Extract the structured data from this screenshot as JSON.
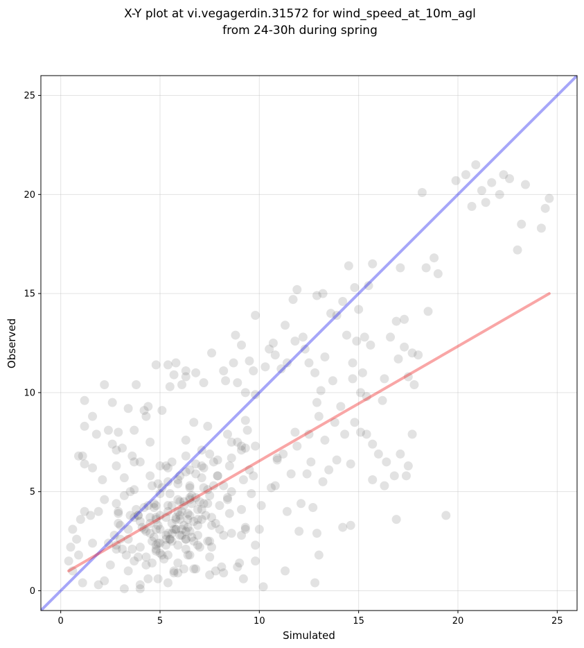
{
  "chart_data": {
    "type": "scatter",
    "title_line1": "X-Y plot at vi.vegagerdin.31572 for wind_speed_at_10m_agl",
    "title_line2": "from 24-30h during spring",
    "xlabel": "Simulated",
    "ylabel": "Observed",
    "xlim": [
      -1,
      26
    ],
    "ylim": [
      -1,
      26
    ],
    "xticks": [
      "0",
      "5",
      "10",
      "15",
      "20",
      "25"
    ],
    "yticks": [
      "0",
      "5",
      "10",
      "15",
      "20",
      "25"
    ],
    "grid": true,
    "lines": [
      {
        "role": "identity",
        "color": "#0000ee",
        "x": [
          -1,
          26
        ],
        "y": [
          -1,
          26
        ]
      },
      {
        "role": "regression",
        "color": "#ee0000",
        "x": [
          0.4,
          24.6
        ],
        "y": [
          1.0,
          15.0
        ]
      }
    ],
    "point_color": "#555555",
    "points": [
      [
        1.2,
        9.6
      ],
      [
        1.6,
        8.8
      ],
      [
        1.2,
        8.3
      ],
      [
        2.2,
        10.4
      ],
      [
        2.6,
        9.5
      ],
      [
        1.8,
        7.9
      ],
      [
        0.9,
        6.8
      ],
      [
        1.2,
        6.4
      ],
      [
        1.6,
        6.2
      ],
      [
        2.1,
        5.6
      ],
      [
        0.6,
        3.1
      ],
      [
        0.8,
        2.6
      ],
      [
        0.9,
        1.8
      ],
      [
        0.6,
        1.0
      ],
      [
        1.1,
        0.4
      ],
      [
        2.2,
        0.5
      ],
      [
        3.2,
        0.1
      ],
      [
        4.0,
        0.3
      ],
      [
        4.9,
        0.6
      ],
      [
        5.9,
        0.9
      ],
      [
        6.7,
        1.1
      ],
      [
        7.5,
        0.8
      ],
      [
        8.1,
        1.2
      ],
      [
        9.0,
        1.4
      ],
      [
        10.2,
        0.2
      ],
      [
        3.4,
        9.2
      ],
      [
        4.2,
        9.1
      ],
      [
        4.3,
        8.8
      ],
      [
        3.7,
        8.1
      ],
      [
        2.9,
        8.0
      ],
      [
        3.1,
        7.2
      ],
      [
        2.6,
        7.4
      ],
      [
        3.6,
        6.8
      ],
      [
        2.8,
        6.3
      ],
      [
        4.0,
        6.5
      ],
      [
        4.8,
        11.4
      ],
      [
        5.5,
        10.3
      ],
      [
        6.1,
        10.4
      ],
      [
        6.8,
        11.0
      ],
      [
        5.4,
        11.4
      ],
      [
        5.8,
        11.5
      ],
      [
        6.3,
        11.1
      ],
      [
        7.2,
        10.5
      ],
      [
        7.6,
        12.0
      ],
      [
        8.2,
        11.1
      ],
      [
        8.7,
        11.5
      ],
      [
        8.9,
        10.5
      ],
      [
        9.3,
        10.0
      ],
      [
        9.7,
        11.1
      ],
      [
        10.3,
        11.3
      ],
      [
        10.7,
        12.5
      ],
      [
        11.3,
        13.4
      ],
      [
        11.8,
        12.6
      ],
      [
        11.4,
        11.5
      ],
      [
        12.2,
        12.8
      ],
      [
        12.5,
        11.5
      ],
      [
        12.8,
        11.0
      ],
      [
        13.1,
        10.1
      ],
      [
        12.9,
        9.5
      ],
      [
        11.7,
        14.7
      ],
      [
        11.9,
        15.2
      ],
      [
        12.9,
        14.9
      ],
      [
        13.2,
        15.0
      ],
      [
        13.6,
        14.0
      ],
      [
        13.9,
        13.9
      ],
      [
        14.2,
        14.6
      ],
      [
        14.5,
        16.4
      ],
      [
        14.8,
        15.3
      ],
      [
        15.0,
        14.2
      ],
      [
        15.7,
        16.5
      ],
      [
        15.5,
        15.4
      ],
      [
        14.4,
        12.9
      ],
      [
        14.9,
        12.6
      ],
      [
        15.3,
        12.8
      ],
      [
        15.6,
        12.4
      ],
      [
        16.6,
        12.8
      ],
      [
        17.0,
        11.7
      ],
      [
        17.3,
        12.3
      ],
      [
        17.7,
        12.0
      ],
      [
        18.0,
        11.9
      ],
      [
        17.5,
        10.8
      ],
      [
        17.8,
        10.4
      ],
      [
        16.3,
        10.7
      ],
      [
        16.2,
        9.6
      ],
      [
        15.1,
        10.0
      ],
      [
        15.4,
        9.8
      ],
      [
        15.1,
        8.0
      ],
      [
        15.4,
        7.9
      ],
      [
        15.7,
        7.4
      ],
      [
        16.0,
        6.9
      ],
      [
        16.4,
        6.5
      ],
      [
        16.8,
        5.8
      ],
      [
        17.1,
        6.9
      ],
      [
        17.5,
        6.3
      ],
      [
        17.4,
        5.8
      ],
      [
        17.7,
        7.9
      ],
      [
        16.9,
        3.6
      ],
      [
        19.4,
        3.8
      ],
      [
        15.7,
        5.6
      ],
      [
        16.3,
        5.3
      ],
      [
        18.2,
        20.1
      ],
      [
        19.9,
        20.7
      ],
      [
        20.4,
        21.0
      ],
      [
        20.9,
        21.5
      ],
      [
        21.2,
        20.2
      ],
      [
        21.7,
        20.6
      ],
      [
        22.1,
        20.0
      ],
      [
        22.3,
        21.0
      ],
      [
        22.6,
        20.8
      ],
      [
        23.4,
        20.5
      ],
      [
        20.7,
        19.4
      ],
      [
        21.4,
        19.6
      ],
      [
        23.2,
        18.5
      ],
      [
        23.0,
        17.2
      ],
      [
        24.2,
        18.3
      ],
      [
        24.4,
        19.3
      ],
      [
        24.6,
        19.8
      ],
      [
        18.4,
        16.3
      ],
      [
        18.8,
        16.8
      ],
      [
        19.0,
        16.0
      ],
      [
        17.1,
        16.3
      ],
      [
        18.5,
        14.1
      ],
      [
        17.3,
        13.7
      ],
      [
        16.9,
        13.6
      ],
      [
        14.7,
        11.5
      ],
      [
        13.3,
        11.8
      ],
      [
        12.3,
        12.2
      ],
      [
        11.1,
        11.2
      ],
      [
        10.8,
        11.9
      ],
      [
        10.5,
        12.2
      ],
      [
        9.5,
        11.6
      ],
      [
        9.1,
        12.4
      ],
      [
        8.8,
        12.9
      ],
      [
        9.8,
        13.9
      ],
      [
        6.3,
        10.8
      ],
      [
        5.7,
        10.9
      ],
      [
        4.4,
        9.3
      ],
      [
        5.1,
        9.1
      ],
      [
        3.8,
        10.4
      ],
      [
        2.4,
        8.1
      ],
      [
        4.5,
        7.5
      ],
      [
        1.5,
        3.8
      ],
      [
        1.0,
        3.6
      ],
      [
        0.5,
        2.2
      ],
      [
        0.4,
        1.5
      ],
      [
        7.8,
        1.0
      ],
      [
        9.2,
        0.6
      ],
      [
        11.3,
        1.0
      ],
      [
        12.8,
        0.4
      ],
      [
        13.0,
        1.8
      ],
      [
        3.2,
        4.8
      ],
      [
        8.6,
        2.9
      ],
      [
        6.4,
        1.8
      ],
      [
        10.8,
        5.3
      ],
      [
        8.9,
        1.2
      ],
      [
        6.9,
        4.1
      ],
      [
        7.5,
        6.9
      ],
      [
        8.2,
        0.9
      ],
      [
        5.4,
        1.8
      ],
      [
        10.0,
        3.1
      ],
      [
        5.6,
        6.5
      ],
      [
        6.8,
        4.7
      ],
      [
        3.7,
        3.7
      ],
      [
        7.6,
        2.2
      ],
      [
        3.1,
        2.1
      ],
      [
        3.4,
        1.0
      ],
      [
        7.9,
        5.8
      ],
      [
        7.4,
        5.1
      ],
      [
        10.1,
        4.3
      ],
      [
        1.1,
        6.8
      ],
      [
        8.5,
        3.9
      ],
      [
        3.9,
        3.8
      ],
      [
        7.0,
        2.2
      ],
      [
        9.1,
        7.1
      ],
      [
        6.9,
        2.8
      ],
      [
        1.9,
        0.3
      ],
      [
        1.2,
        4.0
      ],
      [
        7.6,
        3.7
      ],
      [
        3.7,
        1.5
      ],
      [
        5.4,
        6.2
      ],
      [
        7.0,
        4.5
      ],
      [
        1.6,
        2.4
      ],
      [
        6.3,
        6.8
      ],
      [
        8.6,
        7.5
      ],
      [
        7.6,
        3.3
      ],
      [
        7.7,
        5.3
      ],
      [
        6.3,
        3.0
      ],
      [
        9.8,
        9.9
      ],
      [
        3.0,
        2.6
      ],
      [
        10.9,
        6.6
      ],
      [
        5.4,
        4.3
      ],
      [
        4.3,
        1.7
      ],
      [
        2.9,
        3.9
      ],
      [
        3.7,
        6.5
      ],
      [
        2.5,
        1.3
      ],
      [
        3.5,
        5.0
      ],
      [
        4.9,
        5.4
      ],
      [
        8.3,
        10.6
      ],
      [
        8.6,
        5.0
      ],
      [
        3.2,
        5.7
      ],
      [
        2.2,
        4.6
      ],
      [
        9.1,
        2.8
      ],
      [
        1.9,
        4.0
      ],
      [
        5.9,
        5.6
      ],
      [
        4.0,
        3.5
      ],
      [
        2.4,
        2.4
      ],
      [
        4.3,
        3.0
      ],
      [
        2.9,
        4.0
      ],
      [
        5.1,
        5.2
      ],
      [
        6.3,
        2.6
      ],
      [
        7.4,
        8.3
      ],
      [
        3.3,
        1.8
      ],
      [
        10.9,
        6.7
      ],
      [
        3.8,
        4.1
      ],
      [
        9.6,
        4.9
      ],
      [
        4.0,
        0.1
      ],
      [
        9.8,
        7.3
      ],
      [
        2.8,
        4.4
      ],
      [
        8.2,
        5.3
      ],
      [
        8.4,
        7.9
      ],
      [
        6.6,
        2.7
      ],
      [
        9.3,
        3.1
      ],
      [
        5.0,
        2.4
      ],
      [
        7.4,
        4.4
      ],
      [
        8.5,
        6.3
      ],
      [
        4.5,
        3.7
      ],
      [
        6.2,
        4.3
      ],
      [
        2.8,
        2.3
      ],
      [
        7.4,
        2.5
      ],
      [
        7.2,
        6.2
      ],
      [
        4.9,
        3.3
      ],
      [
        4.3,
        1.3
      ],
      [
        8.4,
        4.7
      ],
      [
        6.4,
        3.6
      ],
      [
        6.7,
        8.5
      ],
      [
        3.5,
        3.8
      ],
      [
        8.6,
        6.7
      ],
      [
        4.8,
        2.3
      ],
      [
        9.3,
        8.6
      ],
      [
        6.7,
        2.5
      ],
      [
        6.2,
        1.1
      ],
      [
        5.9,
        2.3
      ],
      [
        4.8,
        3.7
      ],
      [
        6.5,
        4.7
      ],
      [
        11.8,
        8.0
      ],
      [
        5.4,
        5.5
      ],
      [
        9.5,
        6.1
      ],
      [
        9.4,
        8.1
      ],
      [
        4.5,
        2.9
      ],
      [
        5.5,
        2.6
      ],
      [
        5.1,
        1.8
      ],
      [
        5.0,
        3.8
      ],
      [
        7.1,
        5.7
      ],
      [
        7.8,
        3.4
      ],
      [
        3.9,
        1.7
      ],
      [
        8.4,
        4.6
      ],
      [
        5.6,
        4.3
      ],
      [
        9.2,
        5.6
      ],
      [
        5.8,
        3.1
      ],
      [
        2.7,
        2.8
      ],
      [
        5.2,
        1.6
      ],
      [
        5.7,
        0.9
      ],
      [
        9.8,
        2.3
      ],
      [
        6.0,
        4.5
      ],
      [
        6.9,
        3.6
      ],
      [
        6.5,
        3.0
      ],
      [
        4.5,
        5.8
      ],
      [
        10.6,
        5.2
      ],
      [
        8.0,
        3.1
      ],
      [
        5.9,
        5.4
      ],
      [
        11.2,
        6.9
      ],
      [
        9.7,
        5.8
      ],
      [
        9.8,
        1.5
      ],
      [
        8.2,
        2.8
      ],
      [
        8.9,
        7.5
      ],
      [
        3.0,
        3.3
      ],
      [
        7.5,
        1.7
      ],
      [
        6.7,
        3.5
      ],
      [
        9.3,
        3.2
      ],
      [
        6.0,
        2.8
      ],
      [
        9.1,
        4.1
      ],
      [
        4.6,
        5.3
      ],
      [
        6.5,
        6.1
      ],
      [
        4.2,
        4.2
      ],
      [
        2.8,
        2.1
      ],
      [
        4.2,
        3.1
      ],
      [
        9.3,
        7.2
      ],
      [
        5.3,
        6.3
      ],
      [
        5.0,
        6.3
      ],
      [
        2.8,
        7.1
      ],
      [
        7.2,
        4.4
      ],
      [
        7.9,
        5.8
      ],
      [
        5.4,
        0.4
      ],
      [
        4.4,
        0.6
      ],
      [
        4.1,
        3.2
      ],
      [
        6.6,
        4.4
      ],
      [
        7.9,
        6.6
      ],
      [
        4.7,
        4.2
      ],
      [
        4.8,
        2.0
      ],
      [
        6.0,
        5.8
      ],
      [
        7.5,
        2.5
      ],
      [
        3.4,
        2.6
      ],
      [
        6.1,
        4.0
      ],
      [
        6.3,
        2.1
      ],
      [
        5.4,
        2.9
      ],
      [
        9.1,
        7.3
      ],
      [
        7.1,
        7.1
      ],
      [
        6.6,
        4.8
      ],
      [
        4.6,
        2.5
      ],
      [
        5.3,
        2.6
      ],
      [
        5.5,
        2.6
      ],
      [
        4.4,
        4.3
      ],
      [
        6.8,
        5.9
      ],
      [
        5.8,
        3.1
      ],
      [
        7.2,
        5.2
      ],
      [
        4.7,
        4.4
      ],
      [
        2.9,
        3.4
      ],
      [
        4.8,
        4.3
      ],
      [
        7.1,
        6.3
      ],
      [
        3.6,
        2.1
      ],
      [
        5.7,
        1.0
      ],
      [
        6.8,
        6.4
      ],
      [
        6.8,
        1.1
      ],
      [
        3.9,
        3.8
      ],
      [
        5.6,
        2.9
      ],
      [
        7.5,
        4.8
      ],
      [
        5.6,
        2.5
      ],
      [
        6.5,
        5.2
      ],
      [
        6.5,
        4.6
      ],
      [
        6.3,
        2.6
      ],
      [
        6.4,
        3.2
      ],
      [
        6.3,
        7.6
      ],
      [
        3.4,
        3.1
      ],
      [
        5.5,
        4.9
      ],
      [
        7.3,
        3.8
      ],
      [
        5.8,
        3.7
      ],
      [
        5.4,
        4.0
      ],
      [
        4.7,
        2.7
      ],
      [
        7.1,
        3.6
      ],
      [
        4.6,
        1.4
      ],
      [
        6.9,
        2.3
      ],
      [
        8.0,
        4.3
      ],
      [
        6.0,
        3.6
      ],
      [
        5.7,
        3.1
      ],
      [
        4.8,
        2.1
      ],
      [
        7.1,
        4.1
      ],
      [
        6.1,
        2.8
      ],
      [
        6.5,
        1.8
      ],
      [
        4.0,
        2.2
      ],
      [
        6.3,
        6.0
      ],
      [
        6.5,
        3.8
      ],
      [
        7.7,
        6.5
      ],
      [
        3.7,
        5.1
      ],
      [
        5.3,
        2.8
      ],
      [
        4.5,
        3.4
      ],
      [
        5.8,
        3.6
      ],
      [
        5.9,
        4.0
      ],
      [
        5.9,
        1.4
      ],
      [
        6.2,
        4.5
      ],
      [
        6.9,
        3.3
      ],
      [
        5.0,
        1.9
      ],
      [
        5.0,
        3.1
      ],
      [
        4.9,
        2.4
      ],
      [
        6.4,
        3.9
      ],
      [
        5.9,
        4.6
      ],
      [
        6.5,
        5.3
      ],
      [
        4.8,
        3.1
      ],
      [
        5.3,
        2.3
      ],
      [
        4.8,
        3.6
      ],
      [
        5.6,
        3.4
      ],
      [
        6.2,
        3.3
      ],
      [
        5.0,
        4.9
      ],
      [
        6.1,
        3.1
      ],
      [
        5.3,
        3.7
      ],
      [
        6.0,
        3.8
      ],
      [
        11.9,
        7.3
      ],
      [
        12.6,
        6.5
      ],
      [
        13.3,
        7.6
      ],
      [
        13.8,
        8.5
      ],
      [
        12.4,
        5.9
      ],
      [
        13.2,
        5.5
      ],
      [
        12.1,
        4.4
      ],
      [
        12.7,
        4.2
      ],
      [
        13.5,
        6.1
      ],
      [
        14.3,
        7.9
      ],
      [
        14.6,
        6.4
      ],
      [
        13.9,
        6.6
      ],
      [
        11.6,
        5.9
      ],
      [
        12.0,
        3.0
      ],
      [
        12.9,
        2.9
      ],
      [
        14.2,
        3.2
      ],
      [
        14.6,
        3.3
      ],
      [
        11.4,
        4.0
      ],
      [
        12.5,
        7.9
      ],
      [
        13.0,
        8.8
      ],
      [
        14.1,
        9.3
      ],
      [
        14.8,
        8.5
      ],
      [
        13.7,
        10.6
      ],
      [
        14.7,
        10.7
      ],
      [
        15.2,
        11.0
      ]
    ]
  }
}
